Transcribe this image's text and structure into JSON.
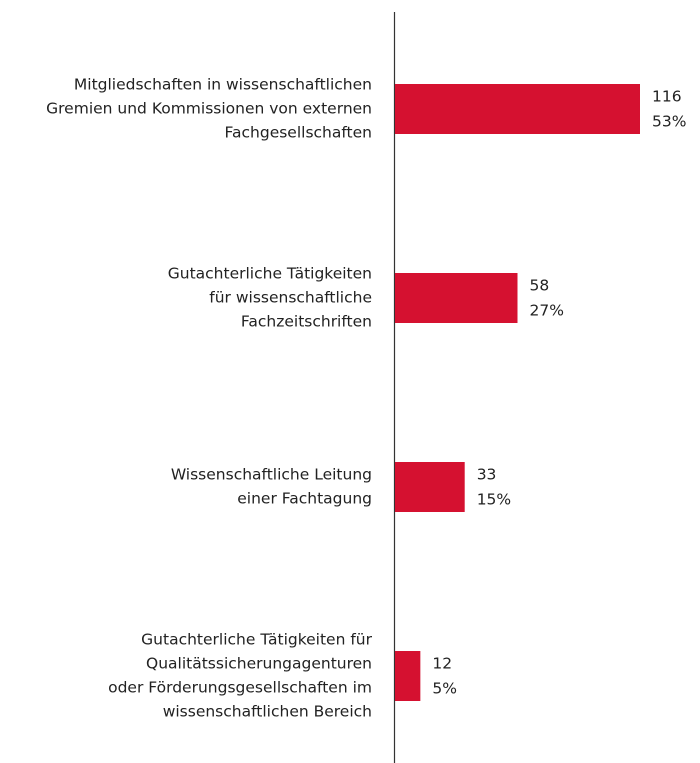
{
  "chart_data": {
    "type": "bar",
    "orientation": "horizontal",
    "color": "#d51130",
    "categories": [
      [
        "Mitgliedschaften in wissenschaftlichen",
        "Gremien und Kommissionen von externen",
        "Fachgesellschaften"
      ],
      [
        "Gutachterliche Tätigkeiten",
        "für wissenschaftliche",
        "Fachzeitschriften"
      ],
      [
        "Wissenschaftliche Leitung",
        "einer Fachtagung"
      ],
      [
        "Gutachterliche Tätigkeiten für",
        "Qualitätssicherungagenturen",
        "oder Förderungsgesellschaften im",
        "wissenschaftlichen Bereich"
      ]
    ],
    "values": [
      116,
      58,
      33,
      12
    ],
    "percentages": {
      "values": [
        53,
        27,
        15,
        5
      ],
      "value_labels": [
        "53%",
        "27%",
        "15%",
        "5%"
      ]
    }
  }
}
